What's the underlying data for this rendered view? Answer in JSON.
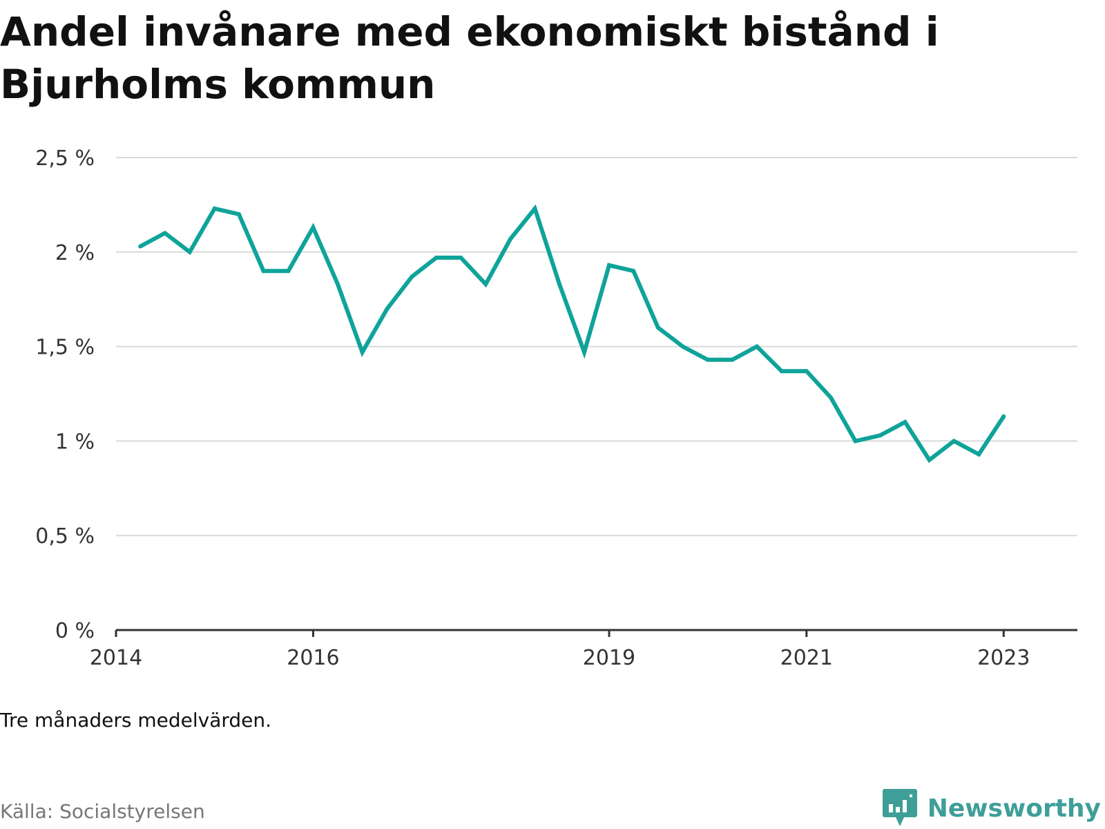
{
  "title": "Andel invånare med ekonomiskt bistånd i Bjurholms kommun",
  "note": "Tre månaders medelvärden.",
  "source": "Källa: Socialstyrelsen",
  "brand": "Newsworthy",
  "colors": {
    "line": "#0fa39a",
    "grid": "#d9d9d9",
    "axis": "#333333",
    "brand": "#3f9e98"
  },
  "icons": {
    "brand_logo": "newsworthy-bar-chart-icon"
  },
  "chart_data": {
    "type": "line",
    "title": "Andel invånare med ekonomiskt bistånd i Bjurholms kommun",
    "xlabel": "",
    "ylabel": "",
    "x_axis_type": "date",
    "xlim": [
      "2014-01-01",
      "2023-10-01"
    ],
    "ylim": [
      0,
      2.5
    ],
    "y_ticks": [
      0,
      0.5,
      1,
      1.5,
      2,
      2.5
    ],
    "y_tick_labels": [
      "0 %",
      "0,5 %",
      "1 %",
      "1,5 %",
      "2 %",
      "2,5 %"
    ],
    "x_ticks": [
      "2014-01-01",
      "2016-01-01",
      "2019-01-01",
      "2021-01-01",
      "2023-01-01"
    ],
    "x_tick_labels": [
      "2014",
      "2016",
      "2019",
      "2021",
      "2023"
    ],
    "grid": true,
    "legend": "none",
    "series": [
      {
        "x": [
          "2014-04-01",
          "2014-07-01",
          "2014-10-01",
          "2015-01-01",
          "2015-04-01",
          "2015-07-01",
          "2015-10-01",
          "2016-01-01",
          "2016-04-01",
          "2016-07-01",
          "2016-10-01",
          "2017-01-01",
          "2017-04-01",
          "2017-07-01",
          "2017-10-01",
          "2018-01-01",
          "2018-04-01",
          "2018-07-01",
          "2018-10-01",
          "2019-01-01",
          "2019-04-01",
          "2019-07-01",
          "2019-10-01",
          "2020-01-01",
          "2020-04-01",
          "2020-07-01",
          "2020-10-01",
          "2021-01-01",
          "2021-04-01",
          "2021-07-01",
          "2021-10-01",
          "2022-01-01",
          "2022-04-01",
          "2022-07-01",
          "2022-10-01",
          "2023-01-01"
        ],
        "values": [
          2.03,
          2.1,
          2.0,
          2.23,
          2.2,
          1.9,
          1.9,
          2.13,
          1.83,
          1.47,
          1.7,
          1.87,
          1.97,
          1.97,
          1.83,
          2.07,
          2.23,
          1.83,
          1.47,
          1.93,
          1.9,
          1.6,
          1.5,
          1.43,
          1.43,
          1.5,
          1.37,
          1.37,
          1.23,
          1.0,
          1.03,
          1.1,
          0.9,
          1.0,
          0.93,
          1.13
        ]
      }
    ]
  }
}
